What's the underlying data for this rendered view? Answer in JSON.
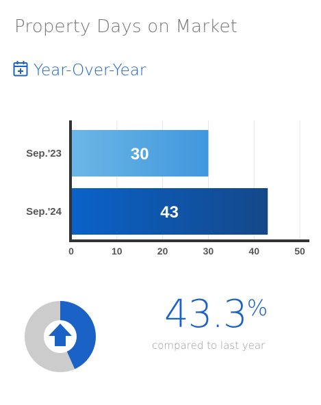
{
  "header": {
    "title": "Property Days on Market",
    "subtitle": "Year-Over-Year",
    "subtitle_icon": "calendar-plus-icon"
  },
  "chart_data": {
    "type": "bar",
    "orientation": "horizontal",
    "categories": [
      "Sep.'23",
      "Sep.'24"
    ],
    "values": [
      30,
      43
    ],
    "xlim": [
      0,
      50
    ],
    "xticks": [
      0,
      10,
      20,
      30,
      40,
      50
    ],
    "grid": true,
    "colors": [
      "#5aa8e0",
      "#0d4fa3"
    ]
  },
  "summary": {
    "percent_value": "43.3",
    "percent_symbol": "%",
    "caption": "compared to last year",
    "donut_fraction": 0.433,
    "trend_icon": "arrow-up-icon",
    "colors": {
      "accent": "#1a62c6",
      "track": "#cccccc"
    }
  }
}
